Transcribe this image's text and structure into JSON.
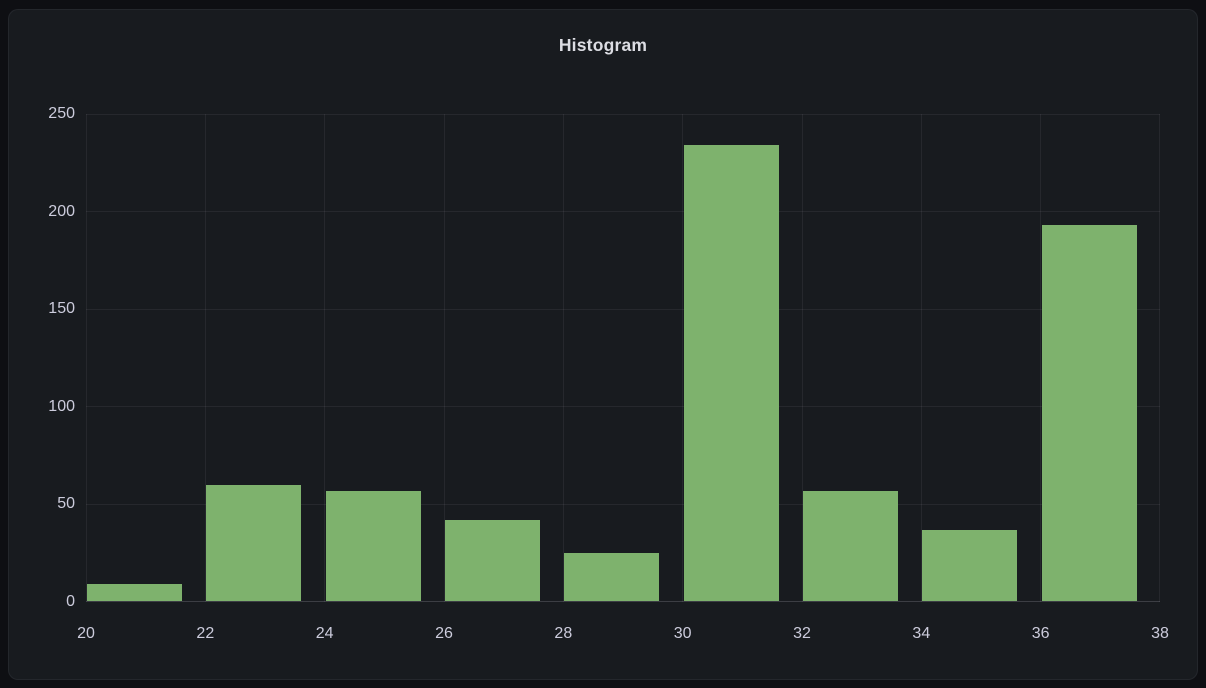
{
  "panel": {
    "title": "Histogram"
  },
  "colors": {
    "bar": "#7EB26D",
    "page_bg": "#0e0f13",
    "panel_bg": "#181b1f",
    "panel_border": "rgba(204,204,220,0.07)",
    "grid": "rgba(204,204,220,0.08)",
    "axis": "rgba(204,204,220,0.20)",
    "tick_text": "#ccccdc",
    "title_text": "#dcdde3"
  },
  "chart_data": {
    "type": "bar",
    "subtype": "histogram",
    "title": "Histogram",
    "x_bucket_starts": [
      20,
      22,
      24,
      26,
      28,
      30,
      32,
      34,
      36
    ],
    "bucket_size": 2,
    "values": [
      9,
      60,
      57,
      42,
      25,
      234,
      57,
      37,
      193
    ],
    "x_ticks": [
      20,
      22,
      24,
      26,
      28,
      30,
      32,
      34,
      36,
      38
    ],
    "y_ticks": [
      0,
      50,
      100,
      150,
      200,
      250
    ],
    "xlim": [
      20,
      38
    ],
    "ylim": [
      0,
      250
    ],
    "xlabel": "",
    "ylabel": "",
    "grid": true,
    "legend": "none",
    "bar_fill_fraction": 0.795
  }
}
